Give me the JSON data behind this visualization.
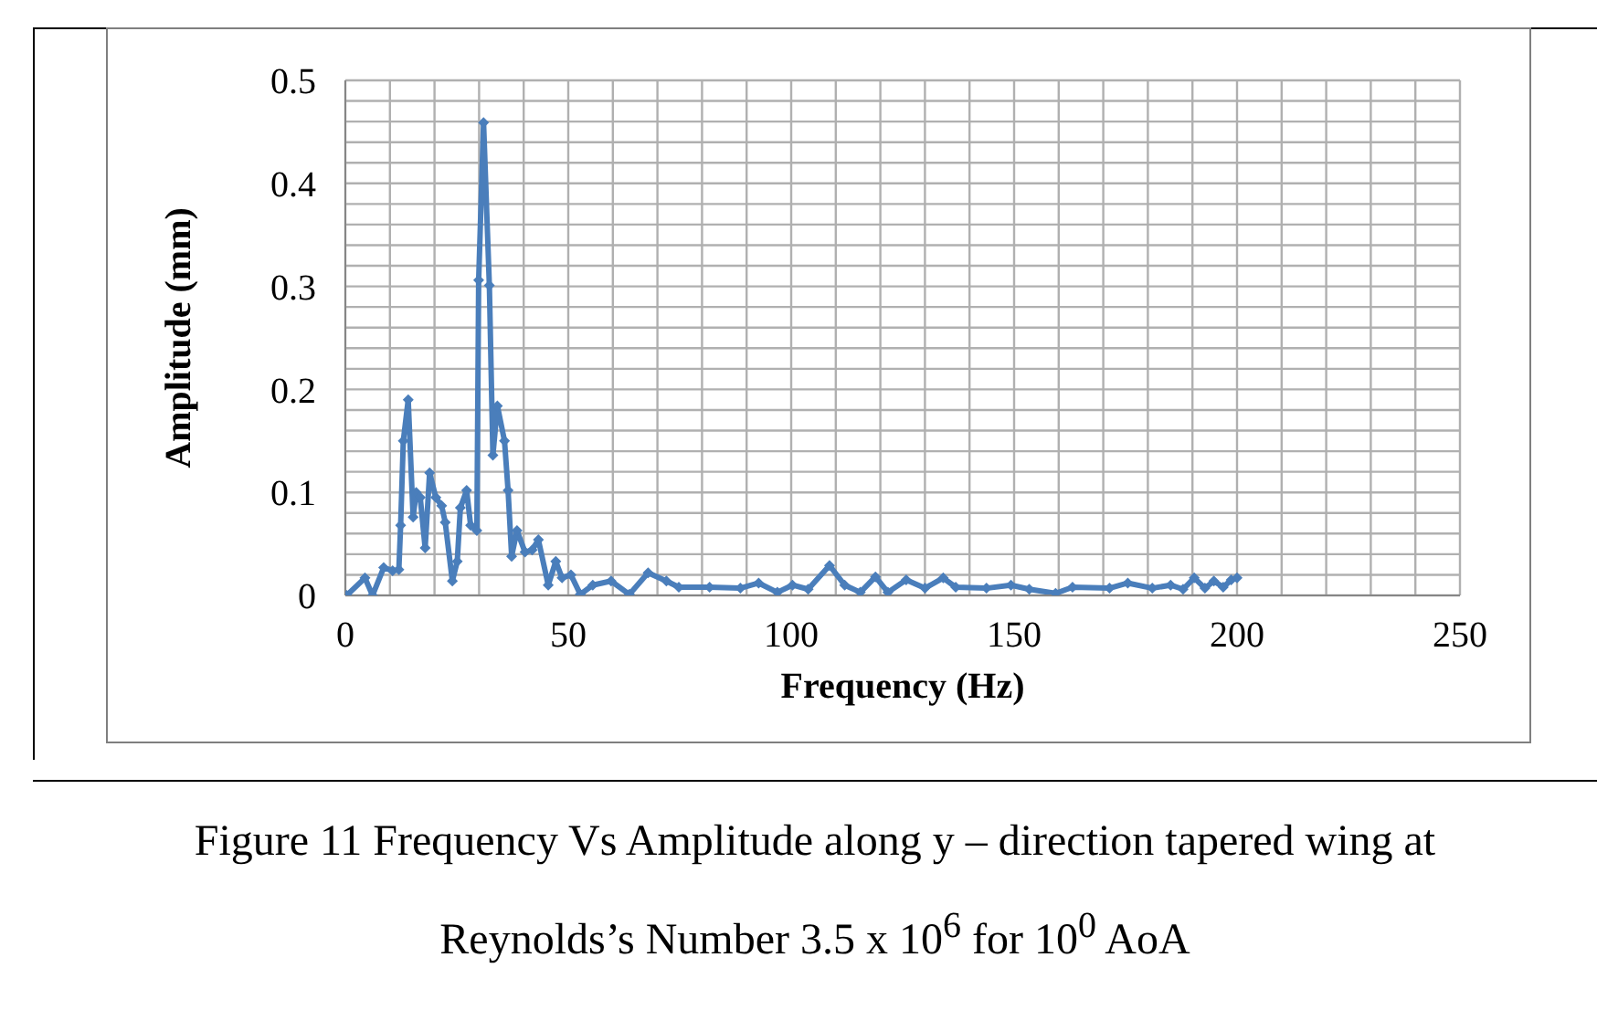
{
  "chart_data": {
    "type": "line",
    "xlabel": "Frequency (Hz)",
    "ylabel": "Amplitude (mm)",
    "annotations": [
      "Figure 11 Frequency Vs Amplitude along y – direction tapered wing at Reynolds’s Number 3.5 x 10$^{6}$ for 10$^{0}$ AoA"
    ],
    "x": [
      0.3,
      4.4,
      6.1,
      8.6,
      10.6,
      12.0,
      12.4,
      13.0,
      14.1,
      15.2,
      15.9,
      16.8,
      17.9,
      18.9,
      20.3,
      21.6,
      22.4,
      24.0,
      25.1,
      25.8,
      27.2,
      28.1,
      29.5,
      29.9,
      31.0,
      32.3,
      33.1,
      34.1,
      35.7,
      36.5,
      37.3,
      38.5,
      40.3,
      41.9,
      43.3,
      45.5,
      47.2,
      48.6,
      50.6,
      52.7,
      55.5,
      59.6,
      63.7,
      67.9,
      72.0,
      74.8,
      81.7,
      88.6,
      92.7,
      96.9,
      100.3,
      103.8,
      108.6,
      112.0,
      115.5,
      118.9,
      121.7,
      125.8,
      130.0,
      134.1,
      136.9,
      143.8,
      149.3,
      153.4,
      159.3,
      163.1,
      171.4,
      175.5,
      181.0,
      185.1,
      187.9,
      190.4,
      192.8,
      194.8,
      196.9,
      198.7,
      200.0
    ],
    "series": [
      {
        "color": "#4a7ebb",
        "values": [
          0.0,
          0.017,
          0.0,
          0.027,
          0.024,
          0.025,
          0.068,
          0.15,
          0.19,
          0.076,
          0.1,
          0.095,
          0.046,
          0.119,
          0.095,
          0.087,
          0.071,
          0.014,
          0.033,
          0.085,
          0.102,
          0.068,
          0.063,
          0.306,
          0.459,
          0.301,
          0.136,
          0.184,
          0.15,
          0.102,
          0.038,
          0.063,
          0.042,
          0.044,
          0.054,
          0.01,
          0.033,
          0.017,
          0.02,
          0.001,
          0.01,
          0.014,
          0.001,
          0.022,
          0.014,
          0.008,
          0.008,
          0.007,
          0.012,
          0.003,
          0.01,
          0.006,
          0.029,
          0.01,
          0.003,
          0.018,
          0.003,
          0.015,
          0.007,
          0.017,
          0.008,
          0.007,
          0.01,
          0.006,
          0.002,
          0.008,
          0.007,
          0.012,
          0.007,
          0.01,
          0.006,
          0.017,
          0.007,
          0.014,
          0.008,
          0.015,
          0.017
        ]
      }
    ],
    "xlim": [
      0,
      250
    ],
    "xticks": [
      0,
      {
        "value": 10,
        "label": null
      },
      {
        "value": 20,
        "label": null
      },
      {
        "value": 30,
        "label": null
      },
      {
        "value": 40,
        "label": null
      },
      50,
      {
        "value": 60,
        "label": null
      },
      {
        "value": 70,
        "label": null
      },
      {
        "value": 80,
        "label": null
      },
      {
        "value": 90,
        "label": null
      },
      100,
      {
        "value": 110,
        "label": null
      },
      {
        "value": 120,
        "label": null
      },
      {
        "value": 130,
        "label": null
      },
      {
        "value": 140,
        "label": null
      },
      150,
      {
        "value": 160,
        "label": null
      },
      {
        "value": 170,
        "label": null
      },
      {
        "value": 180,
        "label": null
      },
      {
        "value": 190,
        "label": null
      },
      200,
      {
        "value": 210,
        "label": null
      },
      {
        "value": 220,
        "label": null
      },
      {
        "value": 230,
        "label": null
      },
      {
        "value": 240,
        "label": null
      },
      250
    ],
    "ylim": [
      0,
      0.5
    ],
    "yticks": [
      0,
      {
        "value": 0.02,
        "label": null
      },
      {
        "value": 0.04,
        "label": null
      },
      {
        "value": 0.06,
        "label": null
      },
      {
        "value": 0.08,
        "label": null
      },
      0.1,
      {
        "value": 0.12,
        "label": null
      },
      {
        "value": 0.14,
        "label": null
      },
      {
        "value": 0.16,
        "label": null
      },
      {
        "value": 0.18,
        "label": null
      },
      0.2,
      {
        "value": 0.22,
        "label": null
      },
      {
        "value": 0.24,
        "label": null
      },
      {
        "value": 0.26,
        "label": null
      },
      {
        "value": 0.28,
        "label": null
      },
      0.3,
      {
        "value": 0.32,
        "label": null
      },
      {
        "value": 0.34,
        "label": null
      },
      {
        "value": 0.36,
        "label": null
      },
      {
        "value": 0.38,
        "label": null
      },
      0.4,
      {
        "value": 0.42,
        "label": null
      },
      {
        "value": 0.44,
        "label": null
      },
      {
        "value": 0.46,
        "label": null
      },
      {
        "value": 0.48,
        "label": null
      },
      0.5
    ],
    "grid": true,
    "legend": false,
    "marker": "diamond",
    "line_style": "solid"
  }
}
